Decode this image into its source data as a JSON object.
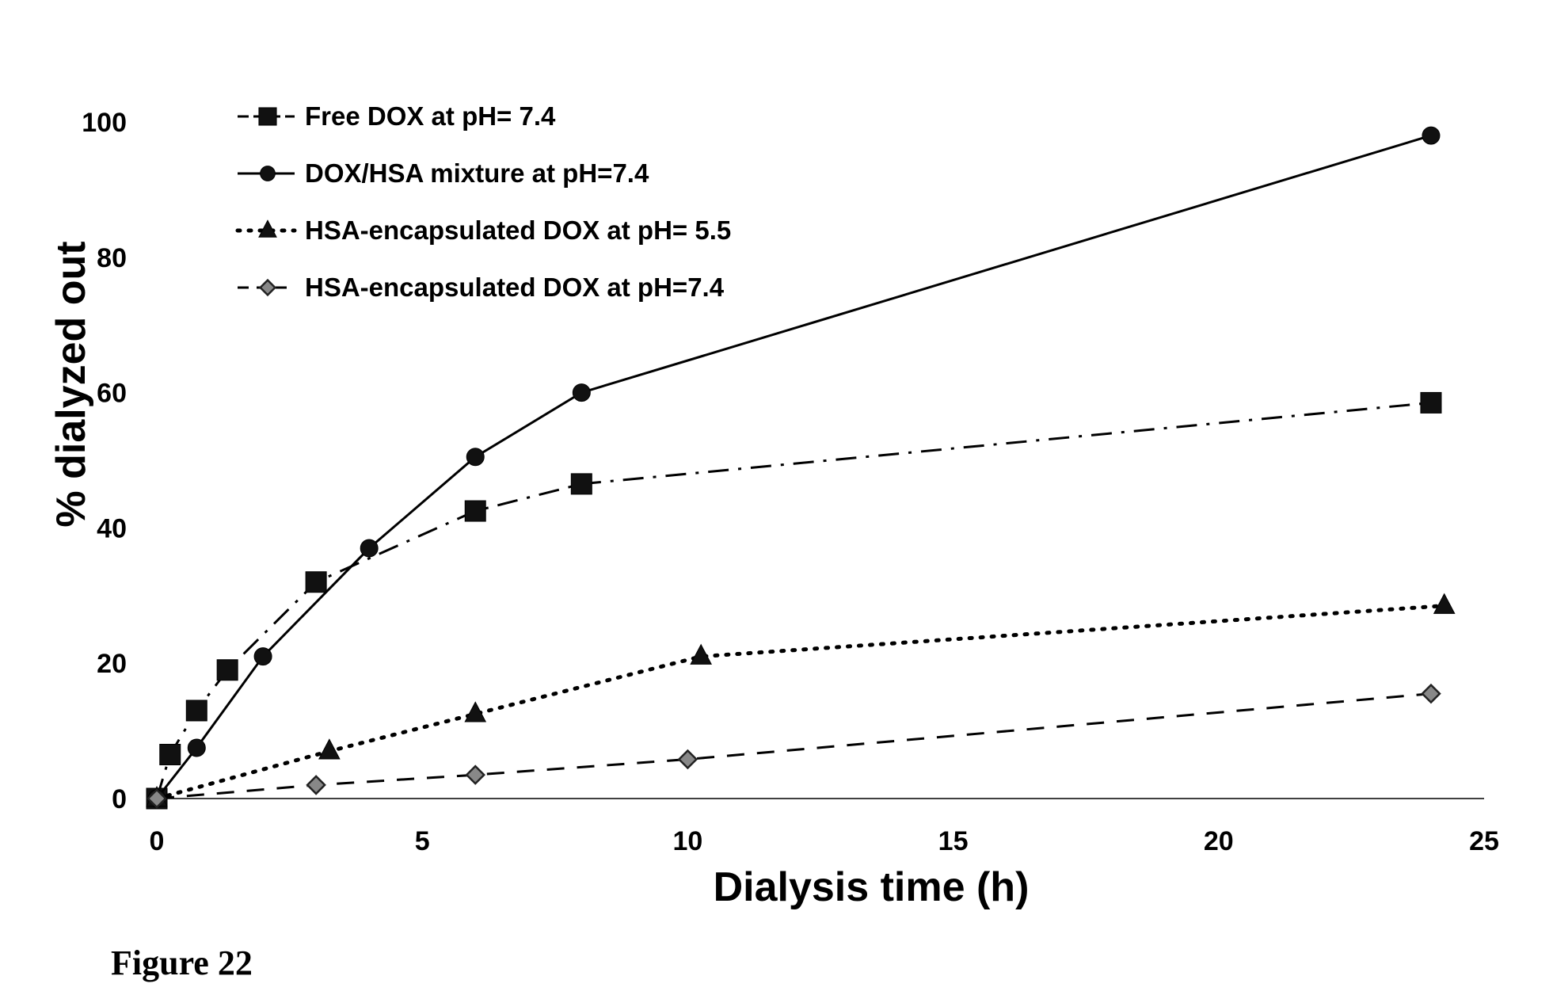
{
  "caption": "Figure 22",
  "chart_data": {
    "type": "line",
    "title": "",
    "xlabel": "Dialysis time (h)",
    "ylabel": "% dialyzed out",
    "xlim": [
      0,
      25
    ],
    "ylim": [
      0,
      100
    ],
    "xticks": [
      0,
      5,
      10,
      15,
      20,
      25
    ],
    "yticks": [
      0,
      20,
      40,
      60,
      80,
      100
    ],
    "grid": false,
    "legend_position": "top-left",
    "series": [
      {
        "name": "Free DOX at pH= 7.4",
        "marker": "square",
        "line_style": "dash-dot",
        "x": [
          0,
          0.25,
          0.75,
          1.33,
          3,
          6,
          8,
          24
        ],
        "y": [
          0,
          6.5,
          13,
          19,
          32,
          42.5,
          46.5,
          58.5
        ]
      },
      {
        "name": "DOX/HSA mixture at pH=7.4",
        "marker": "circle",
        "line_style": "solid",
        "x": [
          0,
          0.75,
          2,
          4,
          6,
          8,
          24
        ],
        "y": [
          0,
          7.5,
          21,
          37,
          50.5,
          60,
          98
        ]
      },
      {
        "name": "HSA-encapsulated DOX at pH= 5.5",
        "marker": "triangle",
        "line_style": "dotted",
        "x": [
          0,
          3.25,
          6,
          10.25,
          24.25
        ],
        "y": [
          0,
          7,
          12.5,
          21,
          28.5
        ]
      },
      {
        "name": "HSA-encapsulated DOX at pH=7.4",
        "marker": "diamond",
        "line_style": "dashed",
        "x": [
          0,
          3,
          6,
          10,
          24
        ],
        "y": [
          0,
          2,
          3.5,
          5.8,
          15.5
        ]
      }
    ]
  }
}
